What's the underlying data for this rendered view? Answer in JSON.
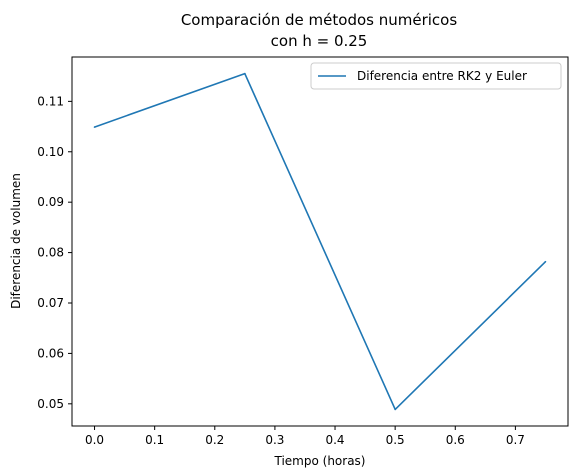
{
  "chart_data": {
    "type": "line",
    "title_line1": "Comparación de métodos numéricos",
    "title_line2": "con h = 0.25",
    "xlabel": "Tiempo (horas)",
    "ylabel": "Diferencia de volumen",
    "x": [
      0.0,
      0.25,
      0.5,
      0.75
    ],
    "series": [
      {
        "name": "Diferencia entre RK2 y Euler",
        "values": [
          0.1049,
          0.1155,
          0.0489,
          0.0782
        ],
        "color": "#1f77b4"
      }
    ],
    "xlim": [
      -0.0375,
      0.7875
    ],
    "ylim": [
      0.0456,
      0.1188
    ],
    "xticks": [
      0.0,
      0.1,
      0.2,
      0.3,
      0.4,
      0.5,
      0.6,
      0.7
    ],
    "xtick_labels": [
      "0.0",
      "0.1",
      "0.2",
      "0.3",
      "0.4",
      "0.5",
      "0.6",
      "0.7"
    ],
    "yticks": [
      0.05,
      0.06,
      0.07,
      0.08,
      0.09,
      0.1,
      0.11
    ],
    "ytick_labels": [
      "0.05",
      "0.06",
      "0.07",
      "0.08",
      "0.09",
      "0.10",
      "0.11"
    ],
    "grid": false,
    "legend_position": "upper right"
  }
}
